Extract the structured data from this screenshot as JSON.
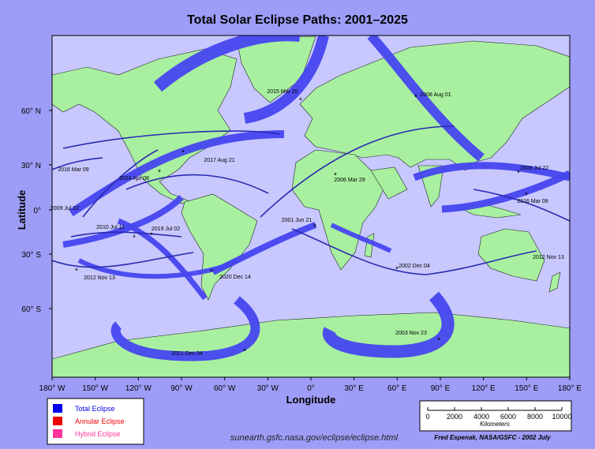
{
  "header": {
    "title": "Total Solar Eclipse Paths:  2001–2025"
  },
  "axes": {
    "x_label": "Longitude",
    "y_label": "Latitude",
    "x_ticks": [
      "180° W",
      "150° W",
      "120° W",
      "90° W",
      "60° W",
      "30° W",
      "0°",
      "30° E",
      "60° E",
      "90° E",
      "120° E",
      "150° E",
      "180° E"
    ],
    "y_ticks": [
      "60° N",
      "30° N",
      "0°",
      "30° S",
      "60° S"
    ]
  },
  "eclipses": [
    "2015 Mar 20",
    "2008 Aug 01",
    "2017 Aug 21",
    "2016 Mar 09",
    "2024 Apr 08",
    "2006 Mar 29",
    "2009 Jul 22",
    "2016 Mar 09",
    "2009 Jul 22",
    "2001 Jun 21",
    "2010 Jul 11",
    "2019 Jul 02",
    "2012 Nov 13",
    "2020 Dec 14",
    "2002 Dec 04",
    "2012 Nov 13",
    "2021 Dec 04",
    "2003 Nov 23"
  ],
  "legend": {
    "items": [
      {
        "label": "Total Eclipse",
        "color": "#0000ee"
      },
      {
        "label": "Annular Eclipse",
        "color": "#ee0000"
      },
      {
        "label": "Hybrid Eclipse",
        "color": "#ff3399"
      }
    ]
  },
  "scale": {
    "ticks": [
      "0",
      "2000",
      "4000",
      "6000",
      "8000",
      "10000"
    ],
    "unit": "Kilometers"
  },
  "footer": {
    "url": "sunearth.gsfc.nasa.gov/eclipse/eclipse.html",
    "credit": "Fred Espenak, NASA/GSFC - 2002 July"
  }
}
